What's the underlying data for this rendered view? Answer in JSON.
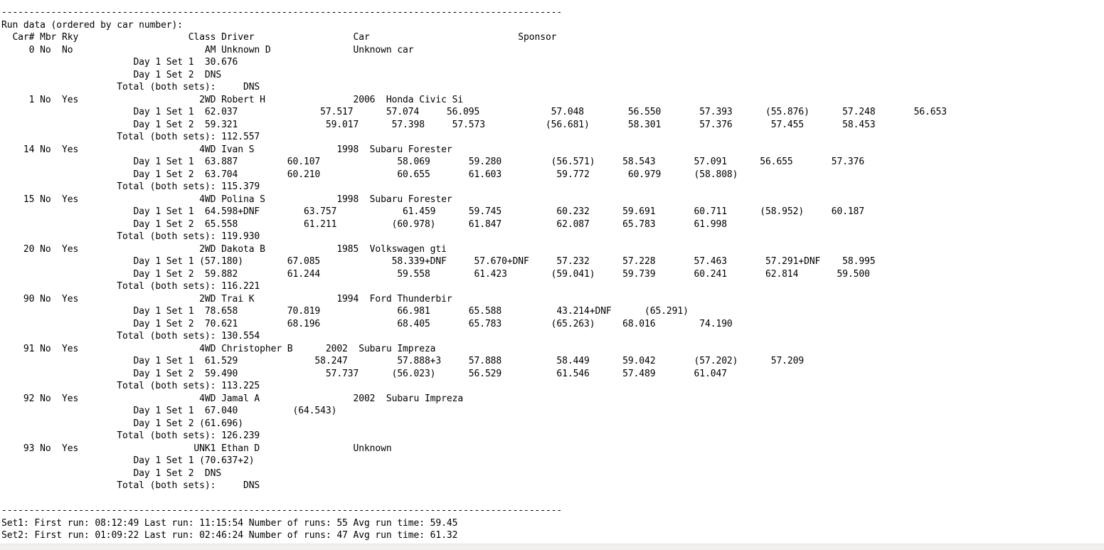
{
  "page": {
    "background": "#ffffff",
    "text_color": "#000000",
    "scrollbar_track_color": "#f0efee"
  },
  "report": {
    "title": "Run data (ordered by car number):",
    "columns": [
      "Car#",
      "Mbr",
      "Rky",
      "Class",
      "Driver",
      "Car",
      "Sponsor"
    ],
    "total_label": "Total (both sets):",
    "entries": [
      {
        "car": "0",
        "mbr": "No",
        "rky": "No",
        "class": "AM",
        "driver": "Unknown D",
        "vehicle": "Unknown car",
        "set1": [
          "30.676"
        ],
        "set2": [
          "DNS"
        ],
        "total": "DNS"
      },
      {
        "car": "1",
        "mbr": "No",
        "rky": "Yes",
        "class": "2WD",
        "driver": "Robert H",
        "vehicle": "2006 Honda Civic Si",
        "set1": [
          "62.037",
          "57.517",
          "57.074",
          "56.095",
          "57.048",
          "56.550",
          "57.393",
          "(55.876)",
          "57.248",
          "56.653"
        ],
        "set2": [
          "59.321",
          "59.017",
          "57.398",
          "57.573",
          "(56.681)",
          "58.301",
          "57.376",
          "57.455",
          "58.453"
        ],
        "total": "112.557"
      },
      {
        "car": "14",
        "mbr": "No",
        "rky": "Yes",
        "class": "4WD",
        "driver": "Ivan S",
        "vehicle": "1998 Subaru Forester",
        "set1": [
          "63.887",
          "60.107",
          "58.069",
          "59.280",
          "(56.571)",
          "58.543",
          "57.091",
          "56.655",
          "57.376"
        ],
        "set2": [
          "63.704",
          "60.210",
          "60.655",
          "61.603",
          "59.772",
          "60.979",
          "(58.808)"
        ],
        "total": "115.379"
      },
      {
        "car": "15",
        "mbr": "No",
        "rky": "Yes",
        "class": "4WD",
        "driver": "Polina S",
        "vehicle": "1998 Subaru Forester",
        "set1": [
          "64.598+DNF",
          "63.757",
          "61.459",
          "59.745",
          "60.232",
          "59.691",
          "60.711",
          "(58.952)",
          "60.187"
        ],
        "set2": [
          "65.558",
          "61.211",
          "(60.978)",
          "61.847",
          "62.087",
          "65.783",
          "61.998"
        ],
        "total": "119.930"
      },
      {
        "car": "20",
        "mbr": "No",
        "rky": "Yes",
        "class": "2WD",
        "driver": "Dakota B",
        "vehicle": "1985 Volkswagen gti",
        "set1": [
          "(57.180)",
          "67.085",
          "58.339+DNF",
          "57.670+DNF",
          "57.232",
          "57.228",
          "57.463",
          "57.291+DNF",
          "58.995"
        ],
        "set2": [
          "59.882",
          "61.244",
          "59.558",
          "61.423",
          "(59.041)",
          "59.739",
          "60.241",
          "62.814",
          "59.500"
        ],
        "total": "116.221"
      },
      {
        "car": "90",
        "mbr": "No",
        "rky": "Yes",
        "class": "2WD",
        "driver": "Trai K",
        "vehicle": "1994 Ford Thunderbir",
        "set1": [
          "78.658",
          "70.819",
          "66.981",
          "65.588",
          "43.214+DNF",
          "(65.291)"
        ],
        "set2": [
          "70.621",
          "68.196",
          "68.405",
          "65.783",
          "(65.263)",
          "68.016",
          "74.190"
        ],
        "total": "130.554"
      },
      {
        "car": "91",
        "mbr": "No",
        "rky": "Yes",
        "class": "4WD",
        "driver": "Christopher B",
        "vehicle": "2002 Subaru Impreza",
        "set1": [
          "61.529",
          "58.247",
          "57.888+3",
          "57.888",
          "58.449",
          "59.042",
          "(57.202)",
          "57.209"
        ],
        "set2": [
          "59.490",
          "57.737",
          "(56.023)",
          "56.529",
          "61.546",
          "57.489",
          "61.047"
        ],
        "total": "113.225"
      },
      {
        "car": "92",
        "mbr": "No",
        "rky": "Yes",
        "class": "4WD",
        "driver": "Jamal A",
        "vehicle": "2002 Subaru Impreza",
        "set1": [
          "67.040",
          "(64.543)"
        ],
        "set2": [
          "(61.696)"
        ],
        "total": "126.239"
      },
      {
        "car": "93",
        "mbr": "No",
        "rky": "Yes",
        "class": "UNK1",
        "driver": "Ethan D",
        "vehicle": "Unknown",
        "set1": [
          "(70.637+2)"
        ],
        "set2": [
          "DNS"
        ],
        "total": "DNS"
      }
    ],
    "summary": [
      {
        "set": "Set1",
        "first_run": "08:12:49",
        "last_run": "11:15:54",
        "number_of_runs": "55",
        "avg_run_time": "59.45"
      },
      {
        "set": "Set2",
        "first_run": "01:09:22",
        "last_run": "02:46:24",
        "number_of_runs": "47",
        "avg_run_time": "61.32"
      }
    ]
  },
  "lines": [
    [
      {
        "c": 0,
        "t": "-",
        "r": 102
      }
    ],
    [
      {
        "c": 0,
        "t": "Run data (ordered by car number):"
      }
    ],
    [
      {
        "c": 2,
        "t": "Car# Mbr Rky"
      },
      {
        "c": 34,
        "t": "Class Driver"
      },
      {
        "c": 64,
        "t": "Car"
      },
      {
        "c": 94,
        "t": "Sponsor"
      }
    ],
    [
      {
        "c": 5,
        "t": "0"
      },
      {
        "c": 7,
        "t": "No"
      },
      {
        "c": 11,
        "t": "No"
      },
      {
        "c": 37,
        "t": "AM Unknown D"
      },
      {
        "c": 64,
        "t": "Unknown car"
      }
    ],
    [
      {
        "c": 24,
        "t": "Day 1 Set 1"
      },
      {
        "c": 37,
        "t": "30.676"
      }
    ],
    [
      {
        "c": 24,
        "t": "Day 1 Set 2"
      },
      {
        "c": 37,
        "t": "DNS"
      }
    ],
    [
      {
        "c": 21,
        "t": "Total (both sets):"
      },
      {
        "c": 44,
        "t": "DNS"
      }
    ],
    [
      {
        "c": 5,
        "t": "1"
      },
      {
        "c": 7,
        "t": "No"
      },
      {
        "c": 11,
        "t": "Yes"
      },
      {
        "c": 36,
        "t": "2WD Robert H"
      },
      {
        "c": 64,
        "t": "2006"
      },
      {
        "c": 70,
        "t": "Honda Civic Si"
      }
    ],
    [
      {
        "c": 24,
        "t": "Day 1 Set 1"
      },
      {
        "c": 37,
        "t": "62.037"
      },
      {
        "c": 58,
        "t": "57.517"
      },
      {
        "c": 70,
        "t": "57.074"
      },
      {
        "c": 81,
        "t": "56.095"
      },
      {
        "c": 100,
        "t": "57.048"
      },
      {
        "c": 114,
        "t": "56.550"
      },
      {
        "c": 127,
        "t": "57.393"
      },
      {
        "c": 139,
        "t": "(55.876)"
      },
      {
        "c": 153,
        "t": "57.248"
      },
      {
        "c": 166,
        "t": "56.653"
      }
    ],
    [
      {
        "c": 24,
        "t": "Day 1 Set 2"
      },
      {
        "c": 37,
        "t": "59.321"
      },
      {
        "c": 59,
        "t": "59.017"
      },
      {
        "c": 71,
        "t": "57.398"
      },
      {
        "c": 82,
        "t": "57.573"
      },
      {
        "c": 99,
        "t": "(56.681)"
      },
      {
        "c": 114,
        "t": "58.301"
      },
      {
        "c": 127,
        "t": "57.376"
      },
      {
        "c": 140,
        "t": "57.455"
      },
      {
        "c": 153,
        "t": "58.453"
      }
    ],
    [
      {
        "c": 21,
        "t": "Total (both sets): 112.557"
      }
    ],
    [
      {
        "c": 4,
        "t": "14"
      },
      {
        "c": 7,
        "t": "No"
      },
      {
        "c": 11,
        "t": "Yes"
      },
      {
        "c": 36,
        "t": "4WD Ivan S"
      },
      {
        "c": 61,
        "t": "1998"
      },
      {
        "c": 67,
        "t": "Subaru Forester"
      }
    ],
    [
      {
        "c": 24,
        "t": "Day 1 Set 1"
      },
      {
        "c": 37,
        "t": "63.887"
      },
      {
        "c": 52,
        "t": "60.107"
      },
      {
        "c": 72,
        "t": "58.069"
      },
      {
        "c": 85,
        "t": "59.280"
      },
      {
        "c": 100,
        "t": "(56.571)"
      },
      {
        "c": 113,
        "t": "58.543"
      },
      {
        "c": 126,
        "t": "57.091"
      },
      {
        "c": 138,
        "t": "56.655"
      },
      {
        "c": 151,
        "t": "57.376"
      }
    ],
    [
      {
        "c": 24,
        "t": "Day 1 Set 2"
      },
      {
        "c": 37,
        "t": "63.704"
      },
      {
        "c": 52,
        "t": "60.210"
      },
      {
        "c": 72,
        "t": "60.655"
      },
      {
        "c": 85,
        "t": "61.603"
      },
      {
        "c": 101,
        "t": "59.772"
      },
      {
        "c": 114,
        "t": "60.979"
      },
      {
        "c": 126,
        "t": "(58.808)"
      }
    ],
    [
      {
        "c": 21,
        "t": "Total (both sets): 115.379"
      }
    ],
    [
      {
        "c": 4,
        "t": "15"
      },
      {
        "c": 7,
        "t": "No"
      },
      {
        "c": 11,
        "t": "Yes"
      },
      {
        "c": 36,
        "t": "4WD Polina S"
      },
      {
        "c": 61,
        "t": "1998"
      },
      {
        "c": 67,
        "t": "Subaru Forester"
      }
    ],
    [
      {
        "c": 24,
        "t": "Day 1 Set 1"
      },
      {
        "c": 37,
        "t": "64.598+DNF"
      },
      {
        "c": 55,
        "t": "63.757"
      },
      {
        "c": 73,
        "t": "61.459"
      },
      {
        "c": 85,
        "t": "59.745"
      },
      {
        "c": 101,
        "t": "60.232"
      },
      {
        "c": 113,
        "t": "59.691"
      },
      {
        "c": 126,
        "t": "60.711"
      },
      {
        "c": 138,
        "t": "(58.952)"
      },
      {
        "c": 151,
        "t": "60.187"
      }
    ],
    [
      {
        "c": 24,
        "t": "Day 1 Set 2"
      },
      {
        "c": 37,
        "t": "65.558"
      },
      {
        "c": 55,
        "t": "61.211"
      },
      {
        "c": 71,
        "t": "(60.978)"
      },
      {
        "c": 85,
        "t": "61.847"
      },
      {
        "c": 101,
        "t": "62.087"
      },
      {
        "c": 113,
        "t": "65.783"
      },
      {
        "c": 126,
        "t": "61.998"
      }
    ],
    [
      {
        "c": 21,
        "t": "Total (both sets): 119.930"
      }
    ],
    [
      {
        "c": 4,
        "t": "20"
      },
      {
        "c": 7,
        "t": "No"
      },
      {
        "c": 11,
        "t": "Yes"
      },
      {
        "c": 36,
        "t": "2WD Dakota B"
      },
      {
        "c": 61,
        "t": "1985"
      },
      {
        "c": 67,
        "t": "Volkswagen gti"
      }
    ],
    [
      {
        "c": 24,
        "t": "Day 1 Set 1"
      },
      {
        "c": 36,
        "t": "(57.180)"
      },
      {
        "c": 52,
        "t": "67.085"
      },
      {
        "c": 71,
        "t": "58.339+DNF"
      },
      {
        "c": 86,
        "t": "57.670+DNF"
      },
      {
        "c": 101,
        "t": "57.232"
      },
      {
        "c": 113,
        "t": "57.228"
      },
      {
        "c": 126,
        "t": "57.463"
      },
      {
        "c": 139,
        "t": "57.291+DNF"
      },
      {
        "c": 153,
        "t": "58.995"
      }
    ],
    [
      {
        "c": 24,
        "t": "Day 1 Set 2"
      },
      {
        "c": 37,
        "t": "59.882"
      },
      {
        "c": 52,
        "t": "61.244"
      },
      {
        "c": 72,
        "t": "59.558"
      },
      {
        "c": 86,
        "t": "61.423"
      },
      {
        "c": 100,
        "t": "(59.041)"
      },
      {
        "c": 113,
        "t": "59.739"
      },
      {
        "c": 126,
        "t": "60.241"
      },
      {
        "c": 139,
        "t": "62.814"
      },
      {
        "c": 152,
        "t": "59.500"
      }
    ],
    [
      {
        "c": 21,
        "t": "Total (both sets): 116.221"
      }
    ],
    [
      {
        "c": 4,
        "t": "90"
      },
      {
        "c": 7,
        "t": "No"
      },
      {
        "c": 11,
        "t": "Yes"
      },
      {
        "c": 36,
        "t": "2WD Trai K"
      },
      {
        "c": 61,
        "t": "1994"
      },
      {
        "c": 67,
        "t": "Ford Thunderbir"
      }
    ],
    [
      {
        "c": 24,
        "t": "Day 1 Set 1"
      },
      {
        "c": 37,
        "t": "78.658"
      },
      {
        "c": 52,
        "t": "70.819"
      },
      {
        "c": 72,
        "t": "66.981"
      },
      {
        "c": 85,
        "t": "65.588"
      },
      {
        "c": 101,
        "t": "43.214+DNF"
      },
      {
        "c": 117,
        "t": "(65.291)"
      }
    ],
    [
      {
        "c": 24,
        "t": "Day 1 Set 2"
      },
      {
        "c": 37,
        "t": "70.621"
      },
      {
        "c": 52,
        "t": "68.196"
      },
      {
        "c": 72,
        "t": "68.405"
      },
      {
        "c": 85,
        "t": "65.783"
      },
      {
        "c": 100,
        "t": "(65.263)"
      },
      {
        "c": 113,
        "t": "68.016"
      },
      {
        "c": 127,
        "t": "74.190"
      }
    ],
    [
      {
        "c": 21,
        "t": "Total (both sets): 130.554"
      }
    ],
    [
      {
        "c": 4,
        "t": "91"
      },
      {
        "c": 7,
        "t": "No"
      },
      {
        "c": 11,
        "t": "Yes"
      },
      {
        "c": 36,
        "t": "4WD Christopher B"
      },
      {
        "c": 59,
        "t": "2002"
      },
      {
        "c": 65,
        "t": "Subaru Impreza"
      }
    ],
    [
      {
        "c": 24,
        "t": "Day 1 Set 1"
      },
      {
        "c": 37,
        "t": "61.529"
      },
      {
        "c": 57,
        "t": "58.247"
      },
      {
        "c": 72,
        "t": "57.888+3"
      },
      {
        "c": 85,
        "t": "57.888"
      },
      {
        "c": 101,
        "t": "58.449"
      },
      {
        "c": 113,
        "t": "59.042"
      },
      {
        "c": 126,
        "t": "(57.202)"
      },
      {
        "c": 140,
        "t": "57.209"
      }
    ],
    [
      {
        "c": 24,
        "t": "Day 1 Set 2"
      },
      {
        "c": 37,
        "t": "59.490"
      },
      {
        "c": 59,
        "t": "57.737"
      },
      {
        "c": 71,
        "t": "(56.023)"
      },
      {
        "c": 85,
        "t": "56.529"
      },
      {
        "c": 101,
        "t": "61.546"
      },
      {
        "c": 113,
        "t": "57.489"
      },
      {
        "c": 126,
        "t": "61.047"
      }
    ],
    [
      {
        "c": 21,
        "t": "Total (both sets): 113.225"
      }
    ],
    [
      {
        "c": 4,
        "t": "92"
      },
      {
        "c": 7,
        "t": "No"
      },
      {
        "c": 11,
        "t": "Yes"
      },
      {
        "c": 36,
        "t": "4WD Jamal A"
      },
      {
        "c": 64,
        "t": "2002"
      },
      {
        "c": 70,
        "t": "Subaru Impreza"
      }
    ],
    [
      {
        "c": 24,
        "t": "Day 1 Set 1"
      },
      {
        "c": 37,
        "t": "67.040"
      },
      {
        "c": 53,
        "t": "(64.543)"
      }
    ],
    [
      {
        "c": 24,
        "t": "Day 1 Set 2"
      },
      {
        "c": 36,
        "t": "(61.696)"
      }
    ],
    [
      {
        "c": 21,
        "t": "Total (both sets): 126.239"
      }
    ],
    [
      {
        "c": 4,
        "t": "93"
      },
      {
        "c": 7,
        "t": "No"
      },
      {
        "c": 11,
        "t": "Yes"
      },
      {
        "c": 35,
        "t": "UNK1 Ethan D"
      },
      {
        "c": 64,
        "t": "Unknown"
      }
    ],
    [
      {
        "c": 24,
        "t": "Day 1 Set 1"
      },
      {
        "c": 36,
        "t": "(70.637+2)"
      }
    ],
    [
      {
        "c": 24,
        "t": "Day 1 Set 2"
      },
      {
        "c": 37,
        "t": "DNS"
      }
    ],
    [
      {
        "c": 21,
        "t": "Total (both sets):"
      },
      {
        "c": 44,
        "t": "DNS"
      }
    ],
    [],
    [
      {
        "c": 0,
        "t": "-",
        "r": 102
      }
    ],
    [
      {
        "c": 0,
        "t": "Set1: First run: 08:12:49 Last run: 11:15:54 Number of runs: 55 Avg run time: 59.45"
      }
    ],
    [
      {
        "c": 0,
        "t": "Set2: First run: 01:09:22 Last run: 02:46:24 Number of runs: 47 Avg run time: 61.32"
      }
    ]
  ]
}
